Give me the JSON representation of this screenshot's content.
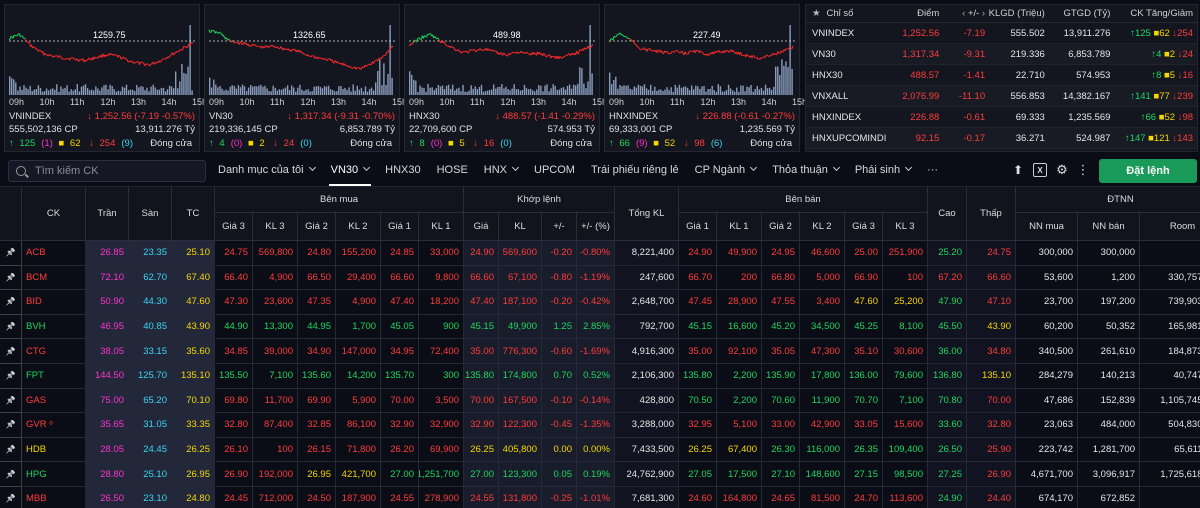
{
  "index_panels": [
    {
      "name": "VNINDEX",
      "ref_label": "1259.75",
      "change": "1,252.56 (-7.19 -0.57%)",
      "volume": "555,502,136 CP",
      "value": "13,911.276 Tỷ",
      "up": "125",
      "ceil": "(1)",
      "flat": "62",
      "down": "254",
      "floor": "(9)",
      "status": "Đóng cửa",
      "start_color": "#1ed760"
    },
    {
      "name": "VN30",
      "ref_label": "1326.65",
      "change": "1,317.34 (-9.31 -0.70%)",
      "volume": "219,336,145 CP",
      "value": "6,853.789 Tỷ",
      "up": "4",
      "ceil": "(0)",
      "flat": "2",
      "down": "24",
      "floor": "(0)",
      "status": "Đóng cửa",
      "start_color": "#1ed760"
    },
    {
      "name": "HNX30",
      "ref_label": "489.98",
      "change": "488.57 (-1.41 -0.29%)",
      "volume": "22,709,600 CP",
      "value": "574.953 Tỷ",
      "up": "8",
      "ceil": "(0)",
      "flat": "5",
      "down": "16",
      "floor": "(0)",
      "status": "Đóng cửa",
      "start_color": "#1ed760"
    },
    {
      "name": "HNXINDEX",
      "ref_label": "227.49",
      "change": "226.88 (-0.61 -0.27%)",
      "volume": "69,333,001 CP",
      "value": "1,235.569 Tỷ",
      "up": "66",
      "ceil": "(9)",
      "flat": "52",
      "down": "98",
      "floor": "(6)",
      "status": "Đóng cửa",
      "start_color": "#1ed760"
    }
  ],
  "time_labels": [
    "09h",
    "10h",
    "11h",
    "12h",
    "13h",
    "14h",
    "15h"
  ],
  "summary": {
    "headers": [
      "Chỉ số",
      "Điểm",
      "+/-",
      "KLGD (Triệu)",
      "GTGD (Tỷ)",
      "CK Tăng/Giảm"
    ],
    "rows": [
      {
        "name": "VNINDEX",
        "points": "1,252.56",
        "change": "-7.19",
        "vol": "555.502",
        "val": "13,911.276",
        "up": "125",
        "flat": "62",
        "down": "254"
      },
      {
        "name": "VN30",
        "points": "1,317.34",
        "change": "-9.31",
        "vol": "219.336",
        "val": "6,853.789",
        "up": "4",
        "flat": "2",
        "down": "24"
      },
      {
        "name": "HNX30",
        "points": "488.57",
        "change": "-1.41",
        "vol": "22.710",
        "val": "574.953",
        "up": "8",
        "flat": "5",
        "down": "16"
      },
      {
        "name": "VNXALL",
        "points": "2,076.99",
        "change": "-11.10",
        "vol": "556.853",
        "val": "14,382.167",
        "up": "141",
        "flat": "77",
        "down": "239"
      },
      {
        "name": "HNXINDEX",
        "points": "226.88",
        "change": "-0.61",
        "vol": "69.333",
        "val": "1,235.569",
        "up": "66",
        "flat": "52",
        "down": "98"
      },
      {
        "name": "HNXUPCOMINDI",
        "points": "92.15",
        "change": "-0.17",
        "vol": "36.271",
        "val": "524.987",
        "up": "147",
        "flat": "121",
        "down": "143"
      }
    ]
  },
  "toolbar": {
    "search_placeholder": "Tìm kiếm CK",
    "tabs": [
      "Danh mục của tôi",
      "VN30",
      "HNX30",
      "HOSE",
      "HNX",
      "UPCOM",
      "Trái phiếu riêng lẻ",
      "CP Ngành",
      "Thỏa thuận",
      "Phái sinh",
      "···"
    ],
    "order_button": "Đặt lệnh"
  },
  "board": {
    "group_headers": {
      "buy": "Bên mua",
      "match": "Khớp lệnh",
      "sell": "Bên bán",
      "foreign": "ĐTNN"
    },
    "col_labels": {
      "ck": "CK",
      "ceil": "Trần",
      "floor": "Sàn",
      "ref": "TC",
      "b3p": "Giá 3",
      "b3v": "KL 3",
      "b2p": "Giá 2",
      "b2v": "KL 2",
      "b1p": "Giá 1",
      "b1v": "KL 1",
      "mp": "Giá",
      "mv": "KL",
      "mc": "+/-",
      "mpc": "+/- (%)",
      "total": "Tổng KL",
      "s1p": "Giá 1",
      "s1v": "KL 1",
      "s2p": "Giá 2",
      "s2v": "KL 2",
      "s3p": "Giá 3",
      "s3v": "KL 3",
      "high": "Cao",
      "low": "Thấp",
      "fbuy": "NN mua",
      "fsell": "NN bán",
      "room": "Room"
    },
    "rows": [
      {
        "sym": "ACB",
        "sc": "r",
        "ceil": "26.85",
        "floor": "23.35",
        "ref": "25.10",
        "b3p": [
          "24.75",
          "r"
        ],
        "b3v": [
          "569,800",
          "r"
        ],
        "b2p": [
          "24.80",
          "r"
        ],
        "b2v": [
          "155,200",
          "r"
        ],
        "b1p": [
          "24.85",
          "r"
        ],
        "b1v": [
          "33,000",
          "r"
        ],
        "mp": [
          "24.90",
          "r"
        ],
        "mv": [
          "569,600",
          "r"
        ],
        "mc": [
          "-0.20",
          "r"
        ],
        "mpc": [
          "-0.80%",
          "r"
        ],
        "total": "8,221,400",
        "s1p": [
          "24.90",
          "r"
        ],
        "s1v": [
          "49,900",
          "r"
        ],
        "s2p": [
          "24.95",
          "r"
        ],
        "s2v": [
          "46,600",
          "r"
        ],
        "s3p": [
          "25.00",
          "r"
        ],
        "s3v": [
          "251,900",
          "r"
        ],
        "high": [
          "25.20",
          "g"
        ],
        "low": [
          "24.75",
          "r"
        ],
        "fbuy": "300,000",
        "fsell": "300,000",
        "room": ""
      },
      {
        "sym": "BCM",
        "sc": "r",
        "ceil": "72.10",
        "floor": "62.70",
        "ref": "67.40",
        "b3p": [
          "66.40",
          "r"
        ],
        "b3v": [
          "4,900",
          "r"
        ],
        "b2p": [
          "66.50",
          "r"
        ],
        "b2v": [
          "29,400",
          "r"
        ],
        "b1p": [
          "66.60",
          "r"
        ],
        "b1v": [
          "9,800",
          "r"
        ],
        "mp": [
          "66.60",
          "r"
        ],
        "mv": [
          "67,100",
          "r"
        ],
        "mc": [
          "-0.80",
          "r"
        ],
        "mpc": [
          "-1.19%",
          "r"
        ],
        "total": "247,600",
        "s1p": [
          "66.70",
          "r"
        ],
        "s1v": [
          "200",
          "r"
        ],
        "s2p": [
          "66.80",
          "r"
        ],
        "s2v": [
          "5,000",
          "r"
        ],
        "s3p": [
          "66.90",
          "r"
        ],
        "s3v": [
          "100",
          "r"
        ],
        "high": [
          "67.20",
          "r"
        ],
        "low": [
          "66.60",
          "r"
        ],
        "fbuy": "53,600",
        "fsell": "1,200",
        "room": "330,757,547"
      },
      {
        "sym": "BID",
        "sc": "r",
        "ceil": "50.90",
        "floor": "44.30",
        "ref": "47.60",
        "b3p": [
          "47.30",
          "r"
        ],
        "b3v": [
          "23,600",
          "r"
        ],
        "b2p": [
          "47.35",
          "r"
        ],
        "b2v": [
          "4,900",
          "r"
        ],
        "b1p": [
          "47.40",
          "r"
        ],
        "b1v": [
          "18,200",
          "r"
        ],
        "mp": [
          "47.40",
          "r"
        ],
        "mv": [
          "187,100",
          "r"
        ],
        "mc": [
          "-0.20",
          "r"
        ],
        "mpc": [
          "-0.42%",
          "r"
        ],
        "total": "2,648,700",
        "s1p": [
          "47.45",
          "r"
        ],
        "s1v": [
          "28,900",
          "r"
        ],
        "s2p": [
          "47.55",
          "r"
        ],
        "s2v": [
          "3,400",
          "r"
        ],
        "s3p": [
          "47.60",
          "y"
        ],
        "s3v": [
          "25,200",
          "y"
        ],
        "high": [
          "47.90",
          "g"
        ],
        "low": [
          "47.10",
          "r"
        ],
        "fbuy": "23,700",
        "fsell": "197,200",
        "room": "739,903,314"
      },
      {
        "sym": "BVH",
        "sc": "g",
        "ceil": "46.95",
        "floor": "40.85",
        "ref": "43.90",
        "b3p": [
          "44.90",
          "g"
        ],
        "b3v": [
          "13,300",
          "g"
        ],
        "b2p": [
          "44.95",
          "g"
        ],
        "b2v": [
          "1,700",
          "g"
        ],
        "b1p": [
          "45.05",
          "g"
        ],
        "b1v": [
          "900",
          "g"
        ],
        "mp": [
          "45.15",
          "g"
        ],
        "mv": [
          "49,900",
          "g"
        ],
        "mc": [
          "1.25",
          "g"
        ],
        "mpc": [
          "2.85%",
          "g"
        ],
        "total": "792,700",
        "s1p": [
          "45.15",
          "g"
        ],
        "s1v": [
          "16,600",
          "g"
        ],
        "s2p": [
          "45.20",
          "g"
        ],
        "s2v": [
          "34,500",
          "g"
        ],
        "s3p": [
          "45.25",
          "g"
        ],
        "s3v": [
          "8,100",
          "g"
        ],
        "high": [
          "45.50",
          "g"
        ],
        "low": [
          "43.90",
          "y"
        ],
        "fbuy": "60,200",
        "fsell": "50,352",
        "room": "165,981,595"
      },
      {
        "sym": "CTG",
        "sc": "r",
        "ceil": "38.05",
        "floor": "33.15",
        "ref": "35.60",
        "b3p": [
          "34.85",
          "r"
        ],
        "b3v": [
          "39,000",
          "r"
        ],
        "b2p": [
          "34.90",
          "r"
        ],
        "b2v": [
          "147,000",
          "r"
        ],
        "b1p": [
          "34.95",
          "r"
        ],
        "b1v": [
          "72,400",
          "r"
        ],
        "mp": [
          "35.00",
          "r"
        ],
        "mv": [
          "776,300",
          "r"
        ],
        "mc": [
          "-0.60",
          "r"
        ],
        "mpc": [
          "-1.69%",
          "r"
        ],
        "total": "4,916,300",
        "s1p": [
          "35.00",
          "r"
        ],
        "s1v": [
          "92,100",
          "r"
        ],
        "s2p": [
          "35.05",
          "r"
        ],
        "s2v": [
          "47,300",
          "r"
        ],
        "s3p": [
          "35.10",
          "r"
        ],
        "s3v": [
          "30,600",
          "r"
        ],
        "high": [
          "36.00",
          "g"
        ],
        "low": [
          "34.80",
          "r"
        ],
        "fbuy": "340,500",
        "fsell": "261,610",
        "room": "184,873,098"
      },
      {
        "sym": "FPT",
        "sc": "g",
        "ceil": "144.50",
        "floor": "125.70",
        "ref": "135.10",
        "b3p": [
          "135.50",
          "g"
        ],
        "b3v": [
          "7,100",
          "g"
        ],
        "b2p": [
          "135.60",
          "g"
        ],
        "b2v": [
          "14,200",
          "g"
        ],
        "b1p": [
          "135.70",
          "g"
        ],
        "b1v": [
          "300",
          "g"
        ],
        "mp": [
          "135.80",
          "g"
        ],
        "mv": [
          "174,800",
          "g"
        ],
        "mc": [
          "0.70",
          "g"
        ],
        "mpc": [
          "0.52%",
          "g"
        ],
        "total": "2,106,300",
        "s1p": [
          "135.80",
          "g"
        ],
        "s1v": [
          "2,200",
          "g"
        ],
        "s2p": [
          "135.90",
          "g"
        ],
        "s2v": [
          "17,800",
          "g"
        ],
        "s3p": [
          "136.00",
          "g"
        ],
        "s3v": [
          "79,600",
          "g"
        ],
        "high": [
          "136.80",
          "g"
        ],
        "low": [
          "135.10",
          "y"
        ],
        "fbuy": "284,279",
        "fsell": "140,213",
        "room": "40,747,528"
      },
      {
        "sym": "GAS",
        "sc": "r",
        "ceil": "75.00",
        "floor": "65.20",
        "ref": "70.10",
        "b3p": [
          "69.80",
          "r"
        ],
        "b3v": [
          "11,700",
          "r"
        ],
        "b2p": [
          "69.90",
          "r"
        ],
        "b2v": [
          "5,900",
          "r"
        ],
        "b1p": [
          "70.00",
          "r"
        ],
        "b1v": [
          "3,500",
          "r"
        ],
        "mp": [
          "70.00",
          "r"
        ],
        "mv": [
          "167,500",
          "r"
        ],
        "mc": [
          "-0.10",
          "r"
        ],
        "mpc": [
          "-0.14%",
          "r"
        ],
        "total": "428,800",
        "s1p": [
          "70.50",
          "g"
        ],
        "s1v": [
          "2,200",
          "g"
        ],
        "s2p": [
          "70.60",
          "g"
        ],
        "s2v": [
          "11,900",
          "g"
        ],
        "s3p": [
          "70.70",
          "g"
        ],
        "s3v": [
          "7,100",
          "g"
        ],
        "high": [
          "70.80",
          "g"
        ],
        "low": [
          "70.00",
          "r"
        ],
        "fbuy": "47,686",
        "fsell": "152,839",
        "room": "1,105,745,597"
      },
      {
        "sym": "GVR ᵒ",
        "sc": "r",
        "ceil": "35.65",
        "floor": "31.05",
        "ref": "33.35",
        "b3p": [
          "32.80",
          "r"
        ],
        "b3v": [
          "87,400",
          "r"
        ],
        "b2p": [
          "32.85",
          "r"
        ],
        "b2v": [
          "86,100",
          "r"
        ],
        "b1p": [
          "32.90",
          "r"
        ],
        "b1v": [
          "32,900",
          "r"
        ],
        "mp": [
          "32.90",
          "r"
        ],
        "mv": [
          "122,300",
          "r"
        ],
        "mc": [
          "-0.45",
          "r"
        ],
        "mpc": [
          "-1.35%",
          "r"
        ],
        "total": "3,288,000",
        "s1p": [
          "32.95",
          "r"
        ],
        "s1v": [
          "5,100",
          "r"
        ],
        "s2p": [
          "33.00",
          "r"
        ],
        "s2v": [
          "42,900",
          "r"
        ],
        "s3p": [
          "33.05",
          "r"
        ],
        "s3v": [
          "15,600",
          "r"
        ],
        "high": [
          "33.60",
          "g"
        ],
        "low": [
          "32.80",
          "r"
        ],
        "fbuy": "23,063",
        "fsell": "484,000",
        "room": "504,830,297"
      },
      {
        "sym": "HDB",
        "sc": "y",
        "ceil": "28.05",
        "floor": "24.45",
        "ref": "26.25",
        "b3p": [
          "26.10",
          "r"
        ],
        "b3v": [
          "100",
          "r"
        ],
        "b2p": [
          "26.15",
          "r"
        ],
        "b2v": [
          "71,800",
          "r"
        ],
        "b1p": [
          "26.20",
          "r"
        ],
        "b1v": [
          "69,900",
          "r"
        ],
        "mp": [
          "26.25",
          "y"
        ],
        "mv": [
          "405,800",
          "y"
        ],
        "mc": [
          "0.00",
          "y"
        ],
        "mpc": [
          "0.00%",
          "y"
        ],
        "total": "7,433,500",
        "s1p": [
          "26.25",
          "y"
        ],
        "s1v": [
          "67,400",
          "y"
        ],
        "s2p": [
          "26.30",
          "g"
        ],
        "s2v": [
          "116,000",
          "g"
        ],
        "s3p": [
          "26.35",
          "g"
        ],
        "s3v": [
          "109,400",
          "g"
        ],
        "high": [
          "26.50",
          "g"
        ],
        "low": [
          "25.90",
          "r"
        ],
        "fbuy": "223,742",
        "fsell": "1,281,700",
        "room": "65,611,810"
      },
      {
        "sym": "HPG",
        "sc": "g",
        "ceil": "28.80",
        "floor": "25.10",
        "ref": "26.95",
        "b3p": [
          "26.90",
          "r"
        ],
        "b3v": [
          "192,000",
          "r"
        ],
        "b2p": [
          "26.95",
          "y"
        ],
        "b2v": [
          "421,700",
          "y"
        ],
        "b1p": [
          "27.00",
          "g"
        ],
        "b1v": [
          "1,251,700",
          "g"
        ],
        "mp": [
          "27.00",
          "g"
        ],
        "mv": [
          "123,300",
          "g"
        ],
        "mc": [
          "0.05",
          "g"
        ],
        "mpc": [
          "0.19%",
          "g"
        ],
        "total": "24,762,900",
        "s1p": [
          "27.05",
          "g"
        ],
        "s1v": [
          "17,500",
          "g"
        ],
        "s2p": [
          "27.10",
          "g"
        ],
        "s2v": [
          "148,600",
          "g"
        ],
        "s3p": [
          "27.15",
          "g"
        ],
        "s3v": [
          "98,500",
          "g"
        ],
        "high": [
          "27.25",
          "g"
        ],
        "low": [
          "26.90",
          "r"
        ],
        "fbuy": "4,671,700",
        "fsell": "3,096,917",
        "room": "1,725,618,093"
      },
      {
        "sym": "MBB",
        "sc": "r",
        "ceil": "26.50",
        "floor": "23.10",
        "ref": "24.80",
        "b3p": [
          "24.45",
          "r"
        ],
        "b3v": [
          "712,000",
          "r"
        ],
        "b2p": [
          "24.50",
          "r"
        ],
        "b2v": [
          "187,900",
          "r"
        ],
        "b1p": [
          "24.55",
          "r"
        ],
        "b1v": [
          "278,900",
          "r"
        ],
        "mp": [
          "24.55",
          "r"
        ],
        "mv": [
          "131,800",
          "r"
        ],
        "mc": [
          "-0.25",
          "r"
        ],
        "mpc": [
          "-1.01%",
          "r"
        ],
        "total": "7,681,300",
        "s1p": [
          "24.60",
          "r"
        ],
        "s1v": [
          "164,800",
          "r"
        ],
        "s2p": [
          "24.65",
          "r"
        ],
        "s2v": [
          "81,500",
          "r"
        ],
        "s3p": [
          "24.70",
          "r"
        ],
        "s3v": [
          "113,600",
          "r"
        ],
        "high": [
          "24.90",
          "g"
        ],
        "low": [
          "24.40",
          "r"
        ],
        "fbuy": "674,170",
        "fsell": "672,852",
        "room": ""
      }
    ]
  }
}
